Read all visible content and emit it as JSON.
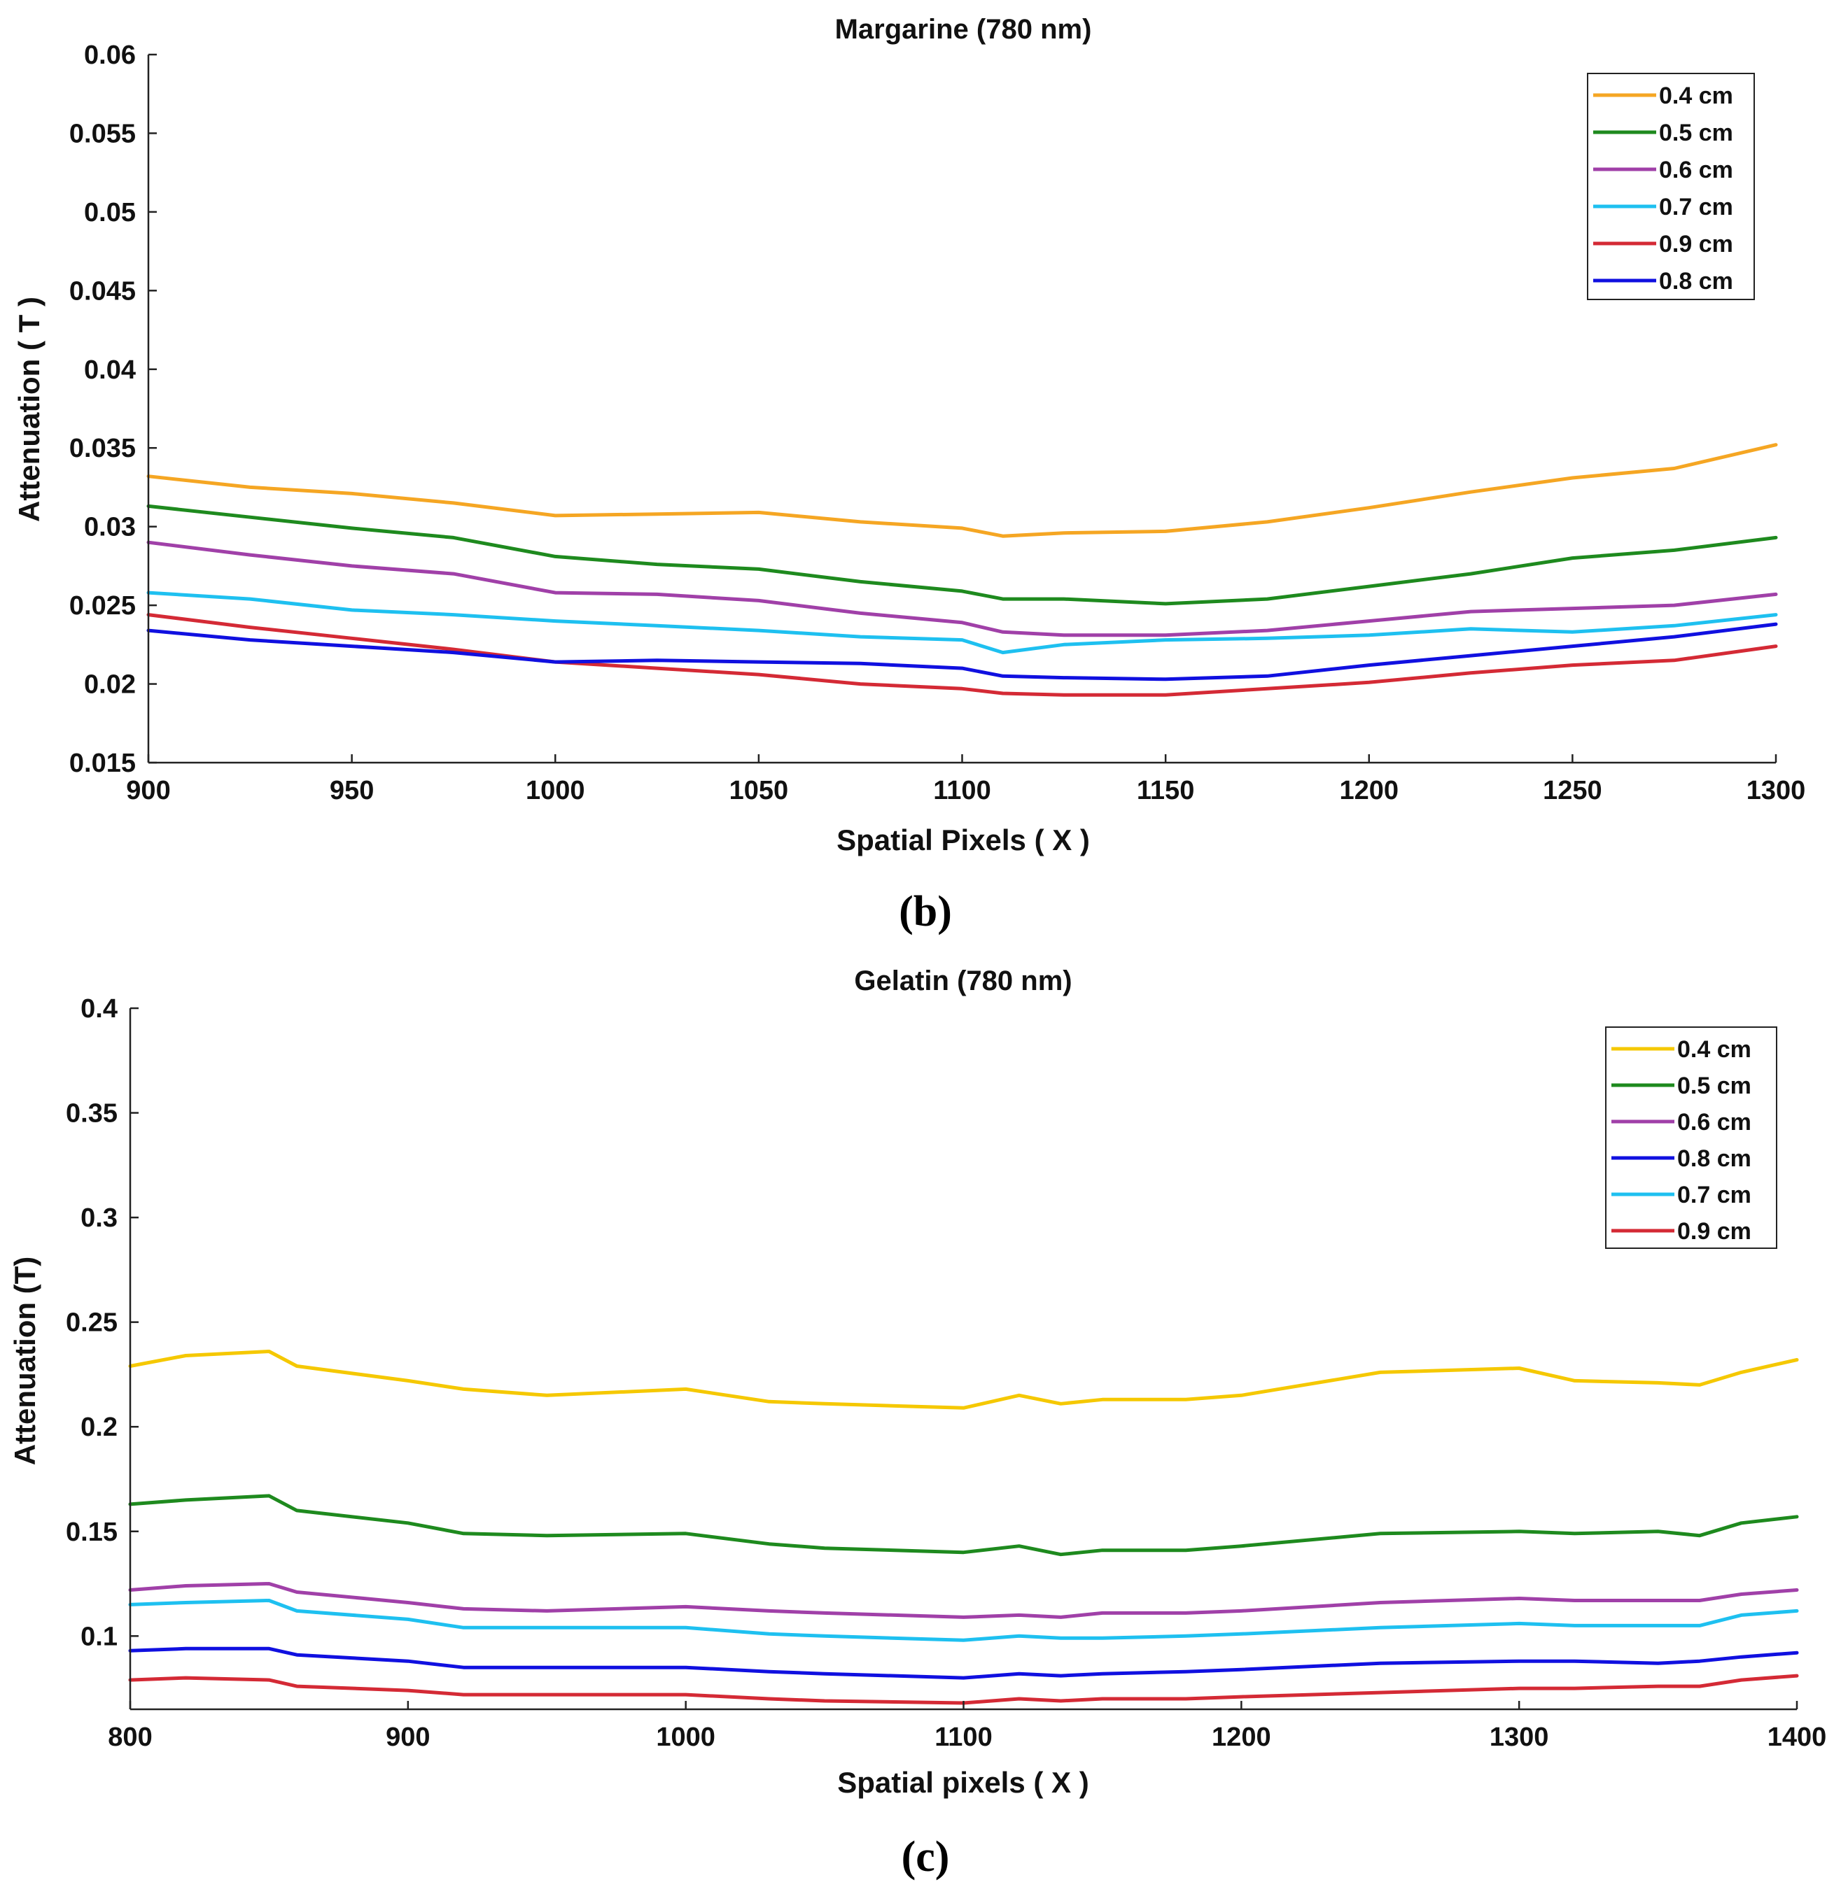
{
  "chart_data": [
    {
      "type": "line",
      "title": "Margarine (780 nm)",
      "xlabel": "Spatial Pixels ( X )",
      "ylabel": "Attenuation ( T )",
      "caption": "(b)",
      "xlim": [
        900,
        1300
      ],
      "ylim": [
        0.015,
        0.06
      ],
      "xticks": [
        900,
        950,
        1000,
        1050,
        1100,
        1150,
        1200,
        1250,
        1300
      ],
      "yticks": [
        0.015,
        0.02,
        0.025,
        0.03,
        0.035,
        0.04,
        0.045,
        0.05,
        0.055,
        0.06
      ],
      "xtick_labels": [
        "900",
        "950",
        "1000",
        "1050",
        "1100",
        "1150",
        "1200",
        "1250",
        "1300"
      ],
      "ytick_labels": [
        "0.015",
        "0.02",
        "0.025",
        "0.03",
        "0.035",
        "0.04",
        "0.045",
        "0.05",
        "0.055",
        "0.06"
      ],
      "grid": false,
      "legend": "top-right",
      "x": [
        900,
        925,
        950,
        975,
        1000,
        1025,
        1050,
        1075,
        1100,
        1110,
        1125,
        1150,
        1175,
        1200,
        1225,
        1250,
        1275,
        1300
      ],
      "series": [
        {
          "name": "0.4 cm",
          "color": "#f5a623",
          "values": [
            0.0332,
            0.0325,
            0.0321,
            0.0315,
            0.0307,
            0.0308,
            0.0309,
            0.0303,
            0.0299,
            0.0294,
            0.0296,
            0.0297,
            0.0303,
            0.0312,
            0.0322,
            0.0331,
            0.0337,
            0.0352
          ]
        },
        {
          "name": "0.5 cm",
          "color": "#1e8a1e",
          "values": [
            0.0313,
            0.0306,
            0.0299,
            0.0293,
            0.0281,
            0.0276,
            0.0273,
            0.0265,
            0.0259,
            0.0254,
            0.0254,
            0.0251,
            0.0254,
            0.0262,
            0.027,
            0.028,
            0.0285,
            0.0293
          ]
        },
        {
          "name": "0.6 cm",
          "color": "#a040a8",
          "values": [
            0.029,
            0.0282,
            0.0275,
            0.027,
            0.0258,
            0.0257,
            0.0253,
            0.0245,
            0.0239,
            0.0233,
            0.0231,
            0.0231,
            0.0234,
            0.024,
            0.0246,
            0.0248,
            0.025,
            0.0257
          ]
        },
        {
          "name": "0.7 cm",
          "color": "#1ec0f0",
          "values": [
            0.0258,
            0.0254,
            0.0247,
            0.0244,
            0.024,
            0.0237,
            0.0234,
            0.023,
            0.0228,
            0.022,
            0.0225,
            0.0228,
            0.0229,
            0.0231,
            0.0235,
            0.0233,
            0.0237,
            0.0244
          ]
        },
        {
          "name": "0.9 cm",
          "color": "#d42a35",
          "values": [
            0.0244,
            0.0236,
            0.0229,
            0.0222,
            0.0214,
            0.021,
            0.0206,
            0.02,
            0.0197,
            0.0194,
            0.0193,
            0.0193,
            0.0197,
            0.0201,
            0.0207,
            0.0212,
            0.0215,
            0.0224
          ]
        },
        {
          "name": "0.8 cm",
          "color": "#1010e0",
          "values": [
            0.0234,
            0.0228,
            0.0224,
            0.022,
            0.0214,
            0.0215,
            0.0214,
            0.0213,
            0.021,
            0.0205,
            0.0204,
            0.0203,
            0.0205,
            0.0212,
            0.0218,
            0.0224,
            0.023,
            0.0238
          ]
        }
      ]
    },
    {
      "type": "line",
      "title": "Gelatin (780 nm)",
      "xlabel": "Spatial pixels ( X )",
      "ylabel": "Attenuation (T)",
      "caption": "(c)",
      "xlim": [
        800,
        1400
      ],
      "ylim": [
        0.065,
        0.4
      ],
      "xticks": [
        800,
        900,
        1000,
        1100,
        1200,
        1300,
        1400
      ],
      "yticks": [
        0.1,
        0.15,
        0.2,
        0.25,
        0.3,
        0.35,
        0.4
      ],
      "xtick_labels": [
        "800",
        "900",
        "1000",
        "1100",
        "1200",
        "1300",
        "1400"
      ],
      "ytick_labels": [
        "0.1",
        "0.15",
        "0.2",
        "0.25",
        "0.3",
        "0.35",
        "0.4"
      ],
      "grid": false,
      "legend": "top-right",
      "x": [
        800,
        820,
        850,
        860,
        900,
        920,
        950,
        1000,
        1030,
        1050,
        1100,
        1120,
        1135,
        1150,
        1180,
        1200,
        1250,
        1300,
        1320,
        1350,
        1365,
        1380,
        1400
      ],
      "series": [
        {
          "name": "0.4 cm",
          "color": "#f5c800",
          "values": [
            0.229,
            0.234,
            0.236,
            0.229,
            0.222,
            0.218,
            0.215,
            0.218,
            0.212,
            0.211,
            0.209,
            0.215,
            0.211,
            0.213,
            0.213,
            0.215,
            0.226,
            0.228,
            0.222,
            0.221,
            0.22,
            0.226,
            0.232
          ]
        },
        {
          "name": "0.5 cm",
          "color": "#1e8a1e",
          "values": [
            0.163,
            0.165,
            0.167,
            0.16,
            0.154,
            0.149,
            0.148,
            0.149,
            0.144,
            0.142,
            0.14,
            0.143,
            0.139,
            0.141,
            0.141,
            0.143,
            0.149,
            0.15,
            0.149,
            0.15,
            0.148,
            0.154,
            0.157
          ]
        },
        {
          "name": "0.6 cm",
          "color": "#a040a8",
          "values": [
            0.122,
            0.124,
            0.125,
            0.121,
            0.116,
            0.113,
            0.112,
            0.114,
            0.112,
            0.111,
            0.109,
            0.11,
            0.109,
            0.111,
            0.111,
            0.112,
            0.116,
            0.118,
            0.117,
            0.117,
            0.117,
            0.12,
            0.122
          ]
        },
        {
          "name": "0.8 cm",
          "color": "#1010e0",
          "values": [
            0.093,
            0.094,
            0.094,
            0.091,
            0.088,
            0.085,
            0.085,
            0.085,
            0.083,
            0.082,
            0.08,
            0.082,
            0.081,
            0.082,
            0.083,
            0.084,
            0.087,
            0.088,
            0.088,
            0.087,
            0.088,
            0.09,
            0.092
          ]
        },
        {
          "name": "0.7 cm",
          "color": "#1ec0f0",
          "values": [
            0.115,
            0.116,
            0.117,
            0.112,
            0.108,
            0.104,
            0.104,
            0.104,
            0.101,
            0.1,
            0.098,
            0.1,
            0.099,
            0.099,
            0.1,
            0.101,
            0.104,
            0.106,
            0.105,
            0.105,
            0.105,
            0.11,
            0.112
          ]
        },
        {
          "name": "0.9 cm",
          "color": "#d42a35",
          "values": [
            0.079,
            0.08,
            0.079,
            0.076,
            0.074,
            0.072,
            0.072,
            0.072,
            0.07,
            0.069,
            0.068,
            0.07,
            0.069,
            0.07,
            0.07,
            0.071,
            0.073,
            0.075,
            0.075,
            0.076,
            0.076,
            0.079,
            0.081
          ]
        }
      ]
    }
  ]
}
